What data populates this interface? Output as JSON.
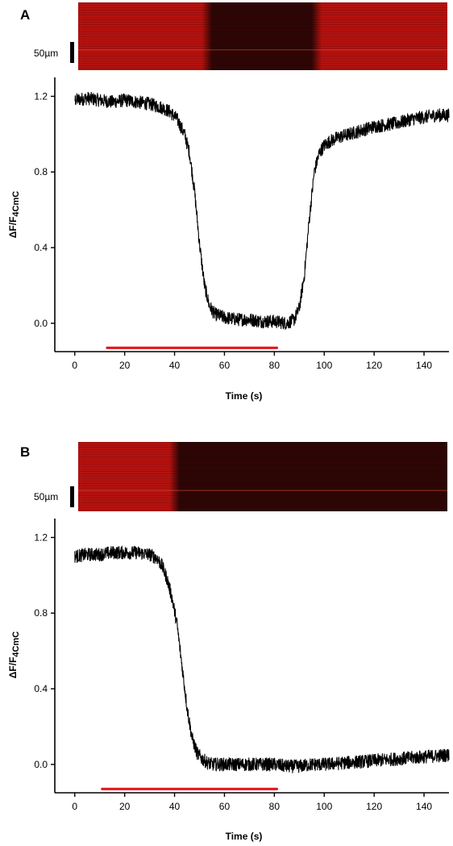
{
  "colors": {
    "trace": "#000000",
    "stimulus_bar": "#e8141c",
    "kymo_bright": "#b3120f",
    "kymo_dark": "#2e0605"
  },
  "chart_data": [
    {
      "type": "line",
      "panel_label": "A",
      "scale_bar_label": "50µm",
      "xlabel": "Time (s)",
      "ylabel_main": "ΔF/F",
      "ylabel_sub": "4CmC",
      "xlim": [
        -8,
        150
      ],
      "ylim": [
        -0.15,
        1.3
      ],
      "x_ticks": [
        0,
        20,
        40,
        60,
        80,
        100,
        120,
        140
      ],
      "y_ticks": [
        0.0,
        0.4,
        0.8,
        1.2
      ],
      "y_tick_labels": [
        "0.0",
        "0.4",
        "0.8",
        "1.2"
      ],
      "stimulus": {
        "start": 13,
        "end": 81,
        "y": -0.13
      },
      "kymograph": {
        "dark_start": 53,
        "dark_end": 97,
        "fade_width": 2
      },
      "series": [
        {
          "x": [
            0,
            5,
            10,
            15,
            20,
            25,
            30,
            35,
            38,
            41,
            44,
            46,
            48,
            50,
            52,
            54,
            56,
            58,
            60,
            65,
            70,
            75,
            80,
            85,
            88,
            90,
            92,
            94,
            96,
            98,
            100,
            102,
            105,
            110,
            115,
            120,
            125,
            130,
            135,
            140,
            145,
            150
          ],
          "y": [
            1.18,
            1.19,
            1.18,
            1.17,
            1.18,
            1.17,
            1.16,
            1.14,
            1.12,
            1.08,
            1.0,
            0.9,
            0.7,
            0.42,
            0.2,
            0.09,
            0.05,
            0.04,
            0.03,
            0.02,
            0.02,
            0.01,
            0.01,
            0.0,
            0.02,
            0.08,
            0.25,
            0.55,
            0.8,
            0.9,
            0.94,
            0.96,
            0.98,
            1.0,
            1.02,
            1.04,
            1.05,
            1.06,
            1.08,
            1.09,
            1.1,
            1.1
          ],
          "noise": 0.035
        }
      ]
    },
    {
      "type": "line",
      "panel_label": "B",
      "scale_bar_label": "50µm",
      "xlabel": "Time (s)",
      "ylabel_main": "ΔF/F",
      "ylabel_sub": "4CmC",
      "xlim": [
        -8,
        150
      ],
      "ylim": [
        -0.15,
        1.3
      ],
      "x_ticks": [
        0,
        20,
        40,
        60,
        80,
        100,
        120,
        140
      ],
      "y_ticks": [
        0.0,
        0.4,
        0.8,
        1.2
      ],
      "y_tick_labels": [
        "0.0",
        "0.4",
        "0.8",
        "1.2"
      ],
      "stimulus": {
        "start": 11,
        "end": 81,
        "y": -0.13
      },
      "kymograph": {
        "dark_start": 40,
        "dark_end": 150,
        "fade_width": 2
      },
      "series": [
        {
          "x": [
            0,
            5,
            10,
            15,
            20,
            25,
            30,
            33,
            35,
            37,
            39,
            41,
            43,
            45,
            47,
            49,
            51,
            53,
            55,
            60,
            65,
            70,
            75,
            80,
            85,
            90,
            95,
            100,
            110,
            120,
            130,
            140,
            150
          ],
          "y": [
            1.1,
            1.11,
            1.11,
            1.12,
            1.12,
            1.12,
            1.11,
            1.09,
            1.05,
            0.98,
            0.88,
            0.74,
            0.52,
            0.3,
            0.14,
            0.06,
            0.03,
            0.01,
            0.0,
            0.0,
            0.0,
            0.0,
            0.0,
            0.0,
            -0.01,
            -0.01,
            0.0,
            0.0,
            0.01,
            0.02,
            0.03,
            0.04,
            0.05
          ],
          "noise": 0.035
        }
      ]
    }
  ]
}
